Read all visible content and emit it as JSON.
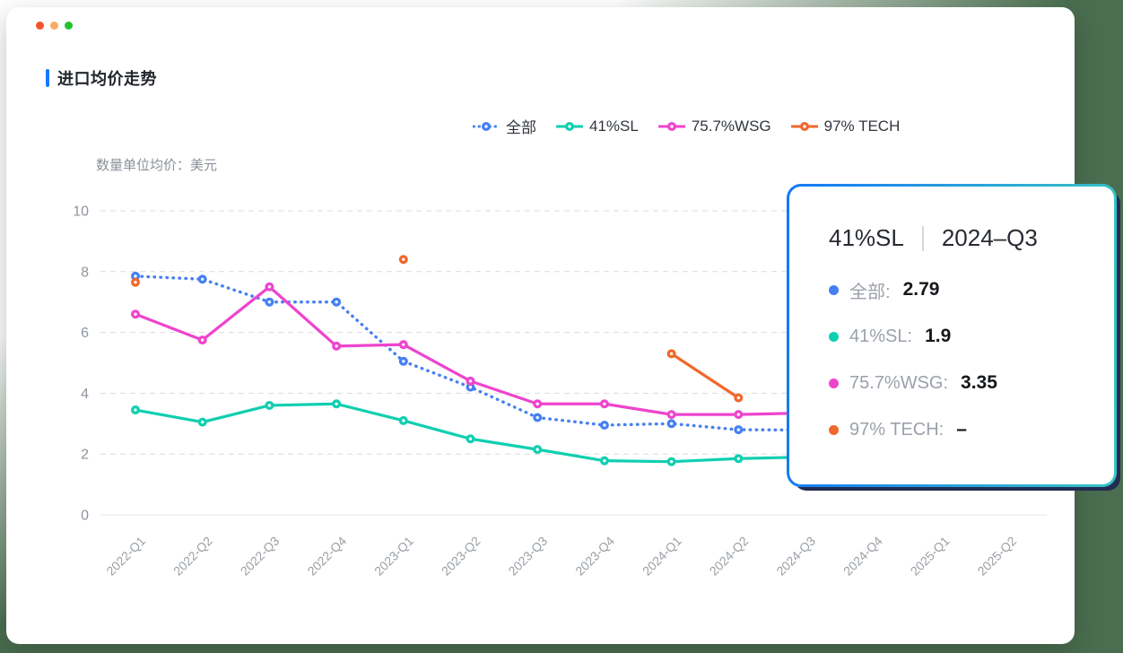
{
  "window": {
    "dots": [
      {
        "name": "close",
        "color": "#f4532e"
      },
      {
        "name": "minimize",
        "color": "#f8ac65"
      },
      {
        "name": "fullscreen",
        "color": "#21c32f"
      }
    ]
  },
  "header": {
    "title": "进口均价走势",
    "accent_color": "#1677ff"
  },
  "chart_data": {
    "type": "line",
    "title": "进口均价走势",
    "unit_label": "数量单位均价：美元",
    "categories": [
      "2022-Q1",
      "2022-Q2",
      "2022-Q3",
      "2022-Q4",
      "2023-Q1",
      "2023-Q2",
      "2023-Q3",
      "2023-Q4",
      "2024-Q1",
      "2024-Q2",
      "2024-Q3",
      "2024-Q4",
      "2025-Q1",
      "2025-Q2"
    ],
    "yticks": [
      "0",
      "2",
      "4",
      "6",
      "8",
      "10"
    ],
    "ylim": [
      0,
      10
    ],
    "grid": "dashed horizontal",
    "legend_position": "top-right",
    "series": [
      {
        "name": "全部",
        "color": "#4580f2",
        "style": "dotted",
        "values": [
          7.85,
          7.75,
          7.0,
          7.0,
          5.05,
          4.2,
          3.2,
          2.95,
          3.0,
          2.8,
          2.79,
          null,
          null,
          null
        ]
      },
      {
        "name": "41%SL",
        "color": "#10cfb0",
        "style": "solid",
        "values": [
          3.45,
          3.05,
          3.6,
          3.65,
          3.1,
          2.5,
          2.15,
          1.78,
          1.75,
          1.85,
          1.9,
          null,
          null,
          null
        ]
      },
      {
        "name": "75.7%WSG",
        "color": "#ee44cd",
        "style": "solid",
        "values": [
          6.6,
          5.75,
          7.5,
          5.55,
          5.6,
          4.4,
          3.65,
          3.65,
          3.3,
          3.3,
          3.35,
          null,
          null,
          null
        ]
      },
      {
        "name": "97% TECH",
        "color": "#f0682b",
        "style": "solid",
        "values": [
          7.65,
          null,
          null,
          null,
          8.4,
          null,
          null,
          null,
          5.3,
          3.85,
          null,
          null,
          null,
          null
        ]
      }
    ]
  },
  "tooltip": {
    "series_name": "41%SL",
    "period": "2024–Q3",
    "rows": [
      {
        "label": "全部:",
        "value": "2.79",
        "color": "#4580f2"
      },
      {
        "label": "41%SL:",
        "value": "1.9",
        "color": "#10cfb0"
      },
      {
        "label": "75.7%WSG:",
        "value": "3.35",
        "color": "#ee44cd"
      },
      {
        "label": "97% TECH:",
        "value": "–",
        "color": "#f0682b"
      }
    ],
    "border_gradient": [
      "#1478f6",
      "#38c4c5"
    ],
    "shadow_color": "#222c52"
  }
}
